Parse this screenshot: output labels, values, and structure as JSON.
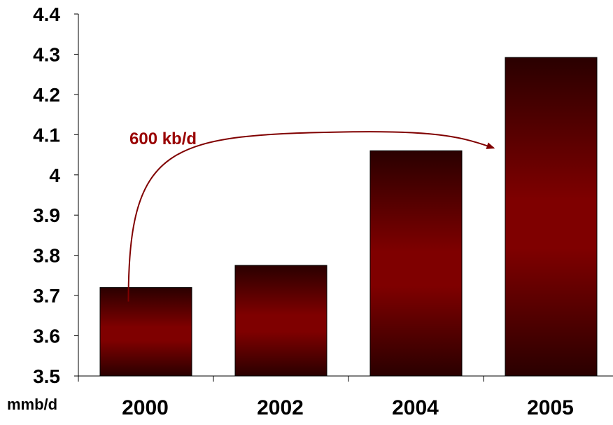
{
  "chart_data": {
    "type": "bar",
    "categories": [
      "2000",
      "2002",
      "2004",
      "2005"
    ],
    "values": [
      3.72,
      3.775,
      4.06,
      4.292
    ],
    "ylim": [
      3.5,
      4.4
    ],
    "yticks": [
      "3.5",
      "3.6",
      "3.7",
      "3.8",
      "3.9",
      "4",
      "4.1",
      "4.2",
      "4.3",
      "4.4"
    ],
    "ylabel": "mmb/d",
    "title": "",
    "xlabel": "",
    "grid": false,
    "annotation": {
      "text": "600 kb/d",
      "from_category": "2000",
      "to_category": "2005"
    },
    "colors": {
      "bar_dark": "#2a0000",
      "bar_mid": "#7f0000",
      "arrow": "#800000",
      "annotation_text": "#990000"
    }
  }
}
